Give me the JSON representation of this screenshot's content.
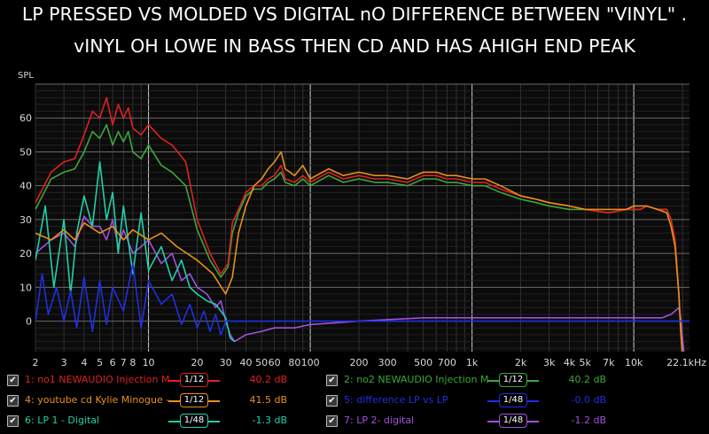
{
  "title_line1": "LP PRESSED VS MOLDED VS DIGITAL nO DIFFERENCE BETWEEN \"VINYL\" .",
  "title_line2": "vINYL OH LOWE IN BASS THEN CD AND HAS AHIGH END PEAK",
  "chart_data": {
    "type": "line",
    "ylabel": "SPL",
    "xlabel": "",
    "x_scale": "log",
    "xlim": [
      2,
      22100
    ],
    "ylim": [
      -9,
      70
    ],
    "grid": true,
    "y_ticks": [
      0,
      10,
      20,
      30,
      40,
      50,
      60
    ],
    "x_ticks": [
      {
        "v": 2,
        "label": "2"
      },
      {
        "v": 3,
        "label": "3"
      },
      {
        "v": 4,
        "label": "4"
      },
      {
        "v": 5,
        "label": "5"
      },
      {
        "v": 6,
        "label": "6"
      },
      {
        "v": 7,
        "label": "7"
      },
      {
        "v": 8,
        "label": "8"
      },
      {
        "v": 10,
        "label": "10"
      },
      {
        "v": 20,
        "label": "20"
      },
      {
        "v": 30,
        "label": "30"
      },
      {
        "v": 40,
        "label": "40"
      },
      {
        "v": 50,
        "label": "50"
      },
      {
        "v": 60,
        "label": "60"
      },
      {
        "v": 80,
        "label": "80"
      },
      {
        "v": 100,
        "label": "100"
      },
      {
        "v": 200,
        "label": "200"
      },
      {
        "v": 300,
        "label": "300"
      },
      {
        "v": 500,
        "label": "500"
      },
      {
        "v": 700,
        "label": "700"
      },
      {
        "v": 1000,
        "label": "1k"
      },
      {
        "v": 2000,
        "label": "2k"
      },
      {
        "v": 3000,
        "label": "3k"
      },
      {
        "v": 4000,
        "label": "4k"
      },
      {
        "v": 5000,
        "label": "5k"
      },
      {
        "v": 7000,
        "label": "7k"
      },
      {
        "v": 10000,
        "label": "10k"
      },
      {
        "v": 22100,
        "label": "22.1kHz"
      }
    ],
    "series": [
      {
        "name": "1: no1 NEWAUDIO Injection M",
        "color": "#e02020",
        "smoothing": "1/12",
        "value": "40.2 dB",
        "x": [
          2,
          2.5,
          3,
          3.5,
          4,
          4.5,
          5,
          5.5,
          6,
          6.5,
          7,
          7.5,
          8,
          9,
          10,
          12,
          14,
          17,
          20,
          24,
          28,
          31,
          33,
          36,
          40,
          45,
          50,
          55,
          60,
          66,
          70,
          80,
          90,
          100,
          130,
          160,
          200,
          250,
          300,
          400,
          500,
          600,
          700,
          800,
          1000,
          1200,
          1500,
          2000,
          2500,
          3000,
          4000,
          5000,
          7000,
          9000,
          10000,
          11000,
          12000,
          14000,
          16000,
          17000,
          18000,
          19000,
          19500,
          20000
        ],
        "y": [
          35,
          44,
          47,
          48,
          55,
          62,
          60,
          66,
          58,
          64,
          60,
          63,
          57,
          55,
          58,
          54,
          52,
          47,
          30,
          20,
          14,
          17,
          29,
          33,
          38,
          40,
          40,
          42,
          43,
          46,
          42,
          41,
          43,
          41,
          44,
          42,
          43,
          42,
          42,
          41,
          43,
          43,
          42,
          42,
          41,
          41,
          39,
          37,
          36,
          35,
          34,
          33,
          32,
          33,
          33,
          33,
          34,
          33,
          33,
          30,
          24,
          8,
          -3,
          -10
        ]
      },
      {
        "name": "2: no2 NEWAUDIO Injection M",
        "color": "#3aa83a",
        "smoothing": "1/12",
        "value": "40.2 dB",
        "x": [
          2,
          2.5,
          3,
          3.5,
          4,
          4.5,
          5,
          5.5,
          6,
          6.5,
          7,
          7.5,
          8,
          9,
          10,
          12,
          14,
          17,
          20,
          24,
          28,
          31,
          33,
          36,
          40,
          45,
          50,
          55,
          60,
          66,
          70,
          80,
          90,
          100,
          130,
          160,
          200,
          250,
          300,
          400,
          500,
          600,
          700,
          800,
          1000,
          1200,
          1500,
          2000,
          2500,
          3000,
          4000,
          5000,
          7000,
          9000,
          10000,
          11000,
          12000,
          14000,
          16000,
          17000,
          18000,
          19000,
          19500,
          20000
        ],
        "y": [
          33,
          42,
          44,
          45,
          50,
          56,
          54,
          58,
          52,
          56,
          53,
          56,
          50,
          48,
          52,
          46,
          44,
          40,
          27,
          18,
          13,
          16,
          26,
          32,
          37,
          39,
          39,
          41,
          42,
          44,
          41,
          40,
          42,
          40,
          43,
          41,
          42,
          41,
          41,
          40,
          42,
          42,
          41,
          41,
          40,
          40,
          38,
          36,
          35,
          34,
          33,
          33,
          32,
          33,
          33,
          33,
          34,
          33,
          33,
          30,
          24,
          8,
          -3,
          -10
        ]
      },
      {
        "name": "4: youtube cd Kylie Minogue -",
        "color": "#e8901a",
        "smoothing": "1/12",
        "value": "41.5 dB",
        "x": [
          2,
          2.5,
          3,
          3.5,
          4,
          5,
          6,
          7,
          8,
          10,
          12,
          15,
          20,
          25,
          30,
          33,
          36,
          40,
          45,
          50,
          55,
          60,
          66,
          70,
          80,
          90,
          100,
          130,
          160,
          200,
          250,
          300,
          400,
          500,
          600,
          700,
          800,
          1000,
          1200,
          1500,
          2000,
          2500,
          3000,
          4000,
          5000,
          7000,
          9000,
          10000,
          11000,
          12000,
          14000,
          16000,
          17000,
          18000,
          19000,
          19500,
          20000
        ],
        "y": [
          26,
          24,
          27,
          24,
          29,
          26,
          28,
          24,
          27,
          24,
          26,
          22,
          18,
          14,
          8,
          13,
          26,
          34,
          40,
          42,
          45,
          47,
          50,
          45,
          43,
          46,
          42,
          45,
          43,
          44,
          43,
          43,
          42,
          44,
          44,
          43,
          43,
          42,
          42,
          40,
          37,
          36,
          35,
          34,
          33,
          33,
          33,
          34,
          34,
          34,
          33,
          32,
          28,
          22,
          8,
          -3,
          -10
        ]
      },
      {
        "name": "5: difference LP vs LP",
        "color": "#1f2fe0",
        "smoothing": "1/48",
        "value": "-0.0 dB",
        "x": [
          2,
          2.2,
          2.4,
          2.7,
          3,
          3.3,
          3.6,
          4,
          4.5,
          5,
          5.5,
          6,
          7,
          8,
          9,
          10,
          12,
          14,
          16,
          18,
          20,
          22,
          24,
          26,
          28,
          30,
          35,
          40,
          50,
          100,
          1000,
          10000,
          20000,
          22100
        ],
        "y": [
          0,
          14,
          2,
          10,
          0,
          9,
          -2,
          13,
          -3,
          12,
          -1,
          10,
          3,
          17,
          -2,
          12,
          5,
          8,
          -1,
          5,
          -2,
          3,
          -3,
          2,
          -4,
          0,
          0,
          0,
          0,
          0,
          0,
          0,
          0,
          0
        ]
      },
      {
        "name": "6: LP 1 - Digital",
        "color": "#20d0a8",
        "smoothing": "1/48",
        "value": "-1.3 dB",
        "x": [
          2,
          2.3,
          2.6,
          3,
          3.3,
          3.6,
          4,
          4.5,
          5,
          5.5,
          6,
          6.5,
          7,
          8,
          9,
          10,
          12,
          14,
          16,
          18,
          20,
          23,
          26,
          28,
          30,
          32,
          34
        ],
        "y": [
          18,
          34,
          10,
          30,
          8,
          26,
          37,
          28,
          47,
          30,
          38,
          20,
          34,
          14,
          32,
          15,
          22,
          12,
          18,
          10,
          8,
          6,
          5,
          3,
          1,
          -5,
          -6
        ]
      },
      {
        "name": "7: LP 2- digital",
        "color": "#a050e0",
        "smoothing": "1/48",
        "value": "-1.2 dB",
        "x": [
          2,
          2.5,
          3,
          3.5,
          4,
          4.5,
          5,
          5.5,
          6,
          6.5,
          7,
          8,
          9,
          10,
          12,
          14,
          16,
          18,
          20,
          23,
          26,
          28,
          30,
          32,
          34,
          40,
          50,
          60,
          80,
          100,
          200,
          500,
          1000,
          2000,
          5000,
          10000,
          15000,
          17000,
          18000,
          19000,
          19500,
          20000,
          20500
        ],
        "y": [
          20,
          24,
          26,
          22,
          31,
          28,
          28,
          24,
          30,
          22,
          27,
          20,
          22,
          24,
          17,
          20,
          12,
          14,
          10,
          8,
          4,
          6,
          0,
          -4,
          -6,
          -4,
          -3,
          -2,
          -2,
          -1,
          0,
          1,
          1,
          1,
          1,
          1,
          1,
          2,
          3,
          4,
          1,
          -5,
          -10
        ]
      }
    ]
  }
}
